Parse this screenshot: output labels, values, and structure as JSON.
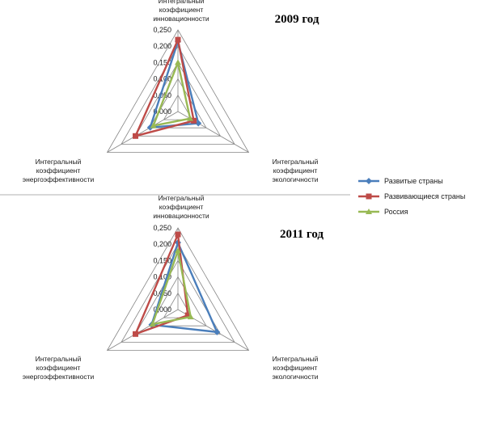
{
  "chart_data": [
    {
      "type": "radar",
      "title": "2009 год",
      "axes": [
        [
          "Интегральный",
          "коэффициент",
          "инновационности"
        ],
        [
          "Интегральный",
          "коэффициент",
          "экологичности"
        ],
        [
          "Интегральный",
          "коэффициент",
          "энергоэффективности"
        ]
      ],
      "ticks": [
        "0,000",
        "0,050",
        "0,100",
        "0,150",
        "0,200",
        "0,250"
      ],
      "rlim": [
        0,
        0.25
      ],
      "series": [
        {
          "name": "Развитые страны",
          "values": [
            0.215,
            0.072,
            0.098
          ]
        },
        {
          "name": "Развивающиеся страны",
          "values": [
            0.22,
            0.056,
            0.15
          ]
        },
        {
          "name": "Россия",
          "values": [
            0.15,
            0.043,
            0.087
          ]
        }
      ]
    },
    {
      "type": "radar",
      "title": "2011 год",
      "axes": [
        [
          "Интегральный",
          "коэффициент",
          "инновационности"
        ],
        [
          "Интегральный",
          "коэффициент",
          "экологичности"
        ],
        [
          "Интегральный",
          "коэффициент",
          "энергоэффективности"
        ]
      ],
      "ticks": [
        "0,000",
        "0,050",
        "0,100",
        "0,150",
        "0,200",
        "0,250"
      ],
      "rlim": [
        0,
        0.25
      ],
      "series": [
        {
          "name": "Развитые страны",
          "values": [
            0.205,
            0.138,
            0.093
          ]
        },
        {
          "name": "Развивающиеся страны",
          "values": [
            0.23,
            0.035,
            0.15
          ]
        },
        {
          "name": "Россия",
          "values": [
            0.18,
            0.045,
            0.09
          ]
        }
      ]
    }
  ],
  "legend": [
    {
      "label": "Развитые страны",
      "color": "#4a7ebb",
      "marker": "diamond"
    },
    {
      "label": "Развивающиеся страны",
      "color": "#be4b48",
      "marker": "square"
    },
    {
      "label": "Россия",
      "color": "#98b954",
      "marker": "triangle"
    }
  ],
  "colors": {
    "grid": "#868686",
    "series": [
      "#4a7ebb",
      "#be4b48",
      "#98b954"
    ]
  }
}
